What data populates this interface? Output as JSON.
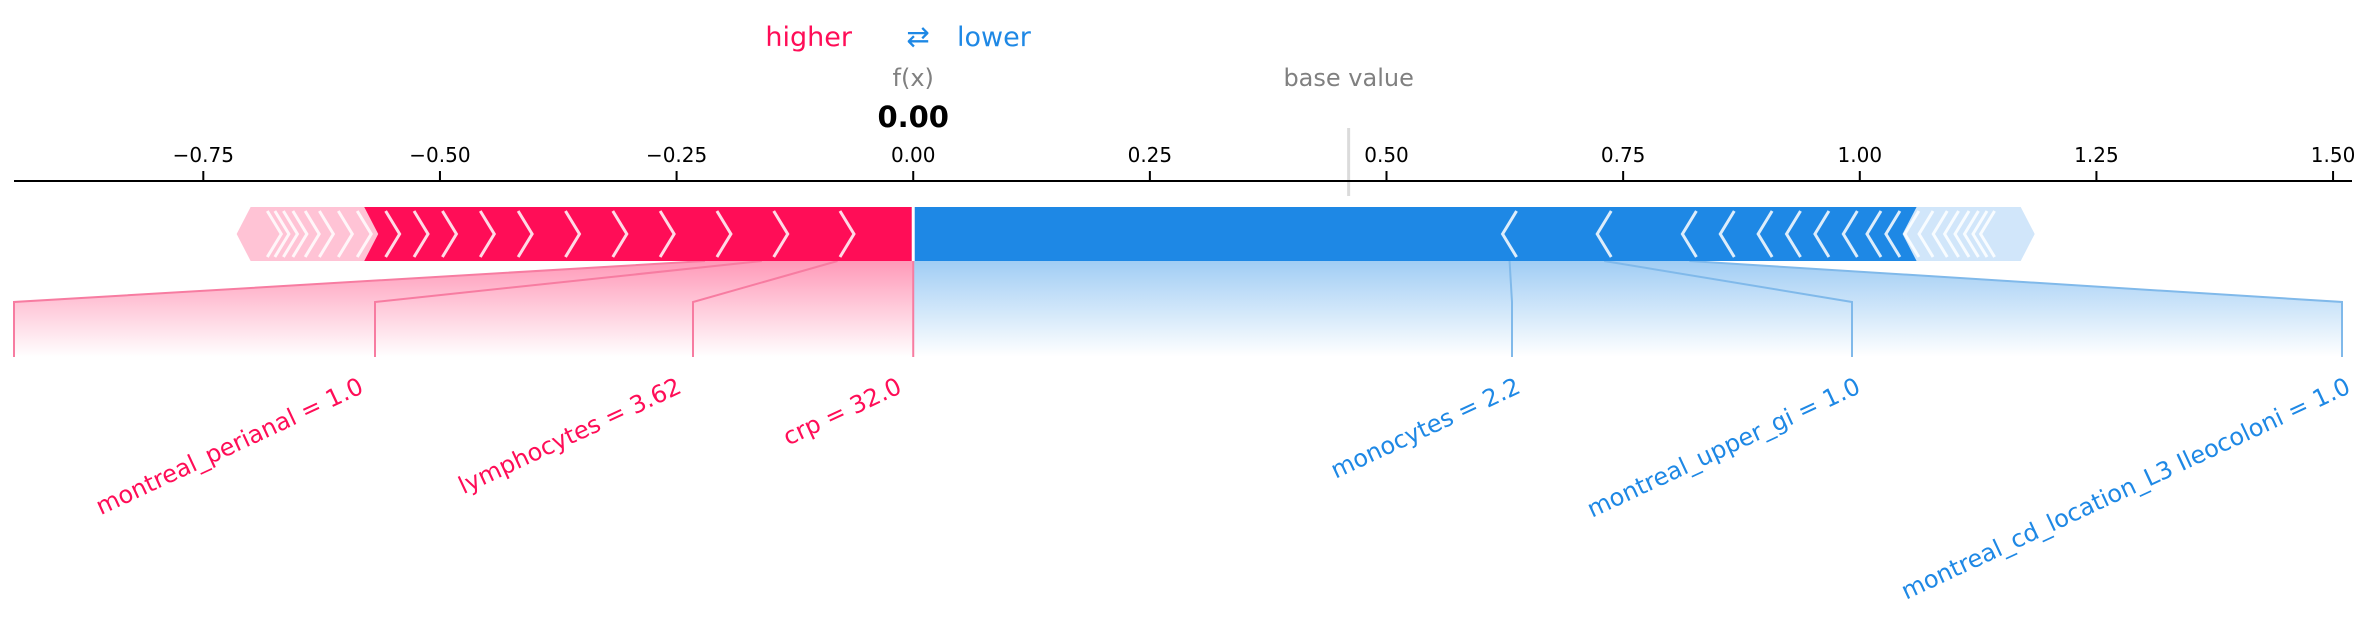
{
  "legend": {
    "higher_label": "higher",
    "arrow_glyph": "⇄",
    "lower_label": "lower"
  },
  "output": {
    "fx_label": "f(x)",
    "fx_value_text": "0.00",
    "base_value_label": "base value"
  },
  "colors": {
    "higher": "#ff0d57",
    "lower": "#1e88e5",
    "higher_line": "#f77ca1",
    "lower_line": "#80b9ea",
    "tail_higher": "#ffc3d5",
    "tail_lower": "#d1e6fa",
    "axis": "#000000",
    "muted_text": "#808080"
  },
  "chart_data": {
    "type": "force",
    "xlim": [
      -0.95,
      1.52
    ],
    "xticks": [
      -0.75,
      -0.5,
      -0.25,
      0.0,
      0.25,
      0.5,
      0.75,
      1.0,
      1.25,
      1.5
    ],
    "xtick_labels": [
      "−0.75",
      "−0.50",
      "−0.25",
      "0.00",
      "0.25",
      "0.50",
      "0.75",
      "1.00",
      "1.25",
      "1.50"
    ],
    "output_value": 0.0,
    "base_value": 0.46,
    "higher_extent": [
      -0.7,
      0.0
    ],
    "lower_extent": [
      0.0,
      1.17
    ],
    "higher_chevrons": [
      -0.07,
      -0.14,
      -0.2,
      -0.26,
      -0.31,
      -0.36,
      -0.41,
      -0.45,
      -0.49,
      -0.52,
      -0.55,
      -0.58,
      -0.6,
      -0.62,
      -0.635,
      -0.648,
      -0.658,
      -0.667,
      -0.675
    ],
    "lower_chevrons": [
      0.63,
      0.73,
      0.82,
      0.86,
      0.9,
      0.93,
      0.96,
      0.99,
      1.015,
      1.035,
      1.055,
      1.07,
      1.085,
      1.097,
      1.108,
      1.118,
      1.127,
      1.135
    ],
    "higher_features": [
      {
        "label": "crp = 32.0",
        "segment": [
          -0.08,
          0.0
        ]
      },
      {
        "label": "lymphocytes = 3.62",
        "segment": [
          -0.16,
          -0.08
        ]
      },
      {
        "label": "montreal_perianal = 1.0",
        "segment": [
          -0.22,
          -0.16
        ]
      }
    ],
    "lower_features": [
      {
        "label": "monocytes = 2.2",
        "segment": [
          0.0,
          0.63
        ]
      },
      {
        "label": "montreal_upper_gi = 1.0",
        "segment": [
          0.63,
          0.73
        ]
      },
      {
        "label": "montreal_cd_location_L3 Ileocoloni = 1.0",
        "segment": [
          0.73,
          0.82
        ]
      }
    ]
  }
}
